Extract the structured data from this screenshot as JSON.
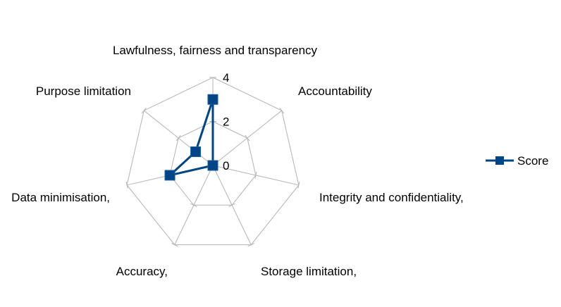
{
  "chart_data": {
    "type": "radar",
    "categories": [
      "Lawfulness, fairness and transparency",
      "Accountability",
      "Integrity and confidentiality,",
      "Storage limitation,",
      "Accuracy,",
      "Data minimisation,",
      "Purpose limitation"
    ],
    "series": [
      {
        "name": "Score",
        "values": [
          3,
          0,
          0,
          0,
          0,
          2,
          1
        ],
        "color": "#004586",
        "marker": "square"
      }
    ],
    "radial_ticks": [
      0,
      2,
      4
    ],
    "range": [
      0,
      4
    ],
    "grid_color": "#b3b3b3",
    "grid": true,
    "legend_position": "right"
  }
}
